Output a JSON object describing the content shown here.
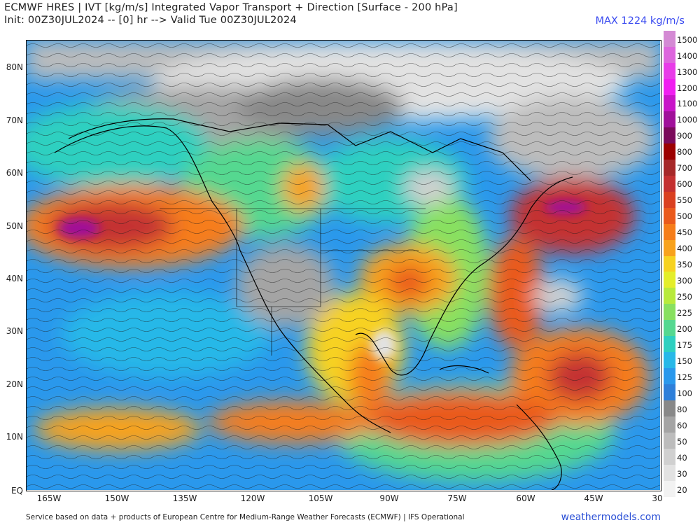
{
  "header": {
    "title_line1": "ECMWF HRES | IVT [kg/m/s] Integrated Vapor Transport + Direction [Surface - 200 hPa]",
    "title_line2": "Init: 00Z30JUL2024 -- [0] hr --> Valid Tue 00Z30JUL2024",
    "max_label": "MAX 1224 kg/m/s"
  },
  "map": {
    "lat_labels": [
      "80N",
      "70N",
      "60N",
      "50N",
      "40N",
      "30N",
      "20N",
      "10N",
      "EQ"
    ],
    "lon_labels": [
      "165W",
      "150W",
      "135W",
      "120W",
      "105W",
      "90W",
      "75W",
      "60W",
      "45W",
      "30"
    ]
  },
  "colorbar": {
    "levels": [
      {
        "label": "1500",
        "color": "#d48ad4"
      },
      {
        "label": "1400",
        "color": "#dd66dd"
      },
      {
        "label": "1300",
        "color": "#e83ce8"
      },
      {
        "label": "1200",
        "color": "#f01ef0"
      },
      {
        "label": "1100",
        "color": "#c814c8"
      },
      {
        "label": "1000",
        "color": "#a0109a"
      },
      {
        "label": "900",
        "color": "#7a0a5a"
      },
      {
        "label": "800",
        "color": "#9c0000"
      },
      {
        "label": "700",
        "color": "#a62828"
      },
      {
        "label": "600",
        "color": "#c43030"
      },
      {
        "label": "550",
        "color": "#da4020"
      },
      {
        "label": "500",
        "color": "#ea5a1c"
      },
      {
        "label": "450",
        "color": "#f67d1a"
      },
      {
        "label": "400",
        "color": "#f8a21c"
      },
      {
        "label": "350",
        "color": "#f7d220"
      },
      {
        "label": "300",
        "color": "#e4ee2a"
      },
      {
        "label": "250",
        "color": "#b8ea3c"
      },
      {
        "label": "225",
        "color": "#88e060"
      },
      {
        "label": "200",
        "color": "#55d890"
      },
      {
        "label": "175",
        "color": "#2ed0c0"
      },
      {
        "label": "150",
        "color": "#28b8e8"
      },
      {
        "label": "125",
        "color": "#2a98ec"
      },
      {
        "label": "100",
        "color": "#2e7fd9"
      },
      {
        "label": "80",
        "color": "#888888"
      },
      {
        "label": "60",
        "color": "#a4a4a4"
      },
      {
        "label": "50",
        "color": "#bcbcbc"
      },
      {
        "label": "40",
        "color": "#d0d0d0"
      },
      {
        "label": "30",
        "color": "#e2e2e2"
      },
      {
        "label": "20",
        "color": "#f2f2f2"
      }
    ]
  },
  "footer": {
    "credit": "Service based on data + products of European Centre for Medium-Range Weather Forecasts (ECMWF) | IFS Operational",
    "brand": "weathermodels.com"
  }
}
